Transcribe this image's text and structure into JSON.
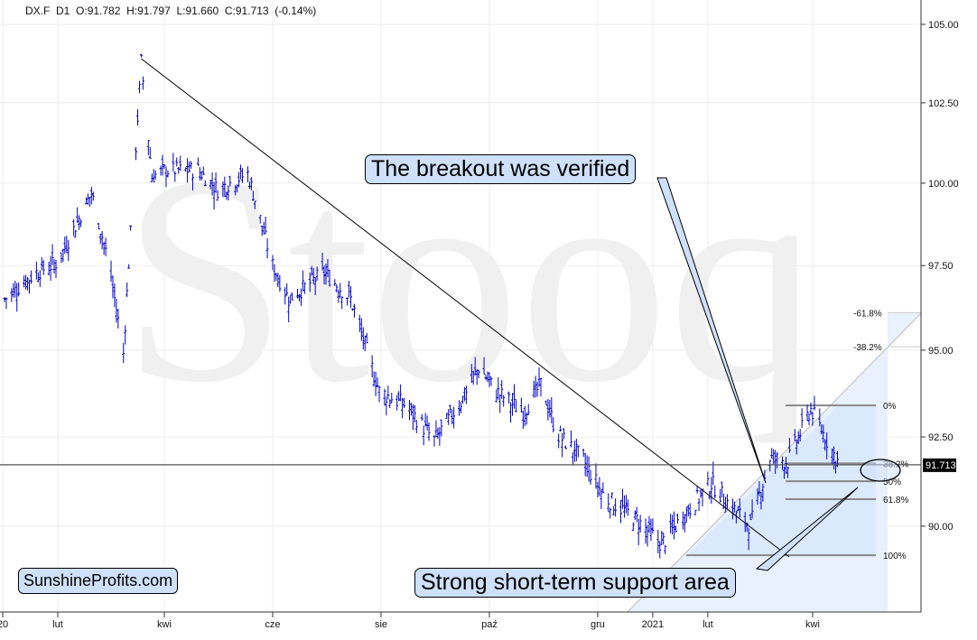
{
  "header": {
    "symbol": "DX.F",
    "interval": "D1",
    "open": "O:91.782",
    "high": "H:91.797",
    "low": "L:91.660",
    "close": "C:91.713",
    "change": "(-0.14%)"
  },
  "watermark": "Stooq",
  "brand": "SunshineProfits.com",
  "callouts": {
    "breakout": "The breakout was verified",
    "support": "Strong short-term support area"
  },
  "last_price_label": "91.713",
  "fib_labels": [
    "-61.8%",
    "-38.2%",
    "0%",
    "38.2%",
    "50%",
    "61.8%",
    "100%"
  ],
  "colors": {
    "bars": "#0000cc",
    "callout_fill": "#cfe0fb",
    "channel": "#e3eefc",
    "last_label_bg": "#000000"
  },
  "chart_data": {
    "type": "ohlc",
    "title": "DX.F D1",
    "scale": "log",
    "ylim": [
      88.5,
      105.5
    ],
    "y_ticks": [
      "105.00",
      "102.50",
      "100.00",
      "97.50",
      "95.00",
      "92.50",
      "90.00"
    ],
    "y_tick_values": [
      105,
      102.5,
      100,
      97.5,
      95,
      92.5,
      90
    ],
    "x_ticks": [
      {
        "label": "20",
        "date": "2020-01-01"
      },
      {
        "label": "lut",
        "date": "2020-02-01"
      },
      {
        "label": "kwi",
        "date": "2020-04-01"
      },
      {
        "label": "cze",
        "date": "2020-06-01"
      },
      {
        "label": "sie",
        "date": "2020-08-01"
      },
      {
        "label": "paź",
        "date": "2020-10-01"
      },
      {
        "label": "gru",
        "date": "2020-12-01"
      },
      {
        "label": "2021",
        "date": "2021-01-01"
      },
      {
        "label": "lut",
        "date": "2021-02-01"
      },
      {
        "label": "kwi",
        "date": "2021-04-01"
      }
    ],
    "series_waypoints": [
      [
        "2020-01-02",
        96.5
      ],
      [
        "2020-01-20",
        97.3
      ],
      [
        "2020-02-01",
        97.6
      ],
      [
        "2020-02-20",
        99.7
      ],
      [
        "2020-03-01",
        97.5
      ],
      [
        "2020-03-09",
        94.9
      ],
      [
        "2020-03-19",
        103.8
      ],
      [
        "2020-03-25",
        100.2
      ],
      [
        "2020-04-01",
        100.4
      ],
      [
        "2020-04-20",
        100.4
      ],
      [
        "2020-05-01",
        99.8
      ],
      [
        "2020-05-18",
        100.3
      ],
      [
        "2020-06-01",
        97.5
      ],
      [
        "2020-06-10",
        96.5
      ],
      [
        "2020-06-30",
        97.3
      ],
      [
        "2020-07-15",
        96.5
      ],
      [
        "2020-07-31",
        93.8
      ],
      [
        "2020-08-15",
        93.4
      ],
      [
        "2020-08-31",
        92.4
      ],
      [
        "2020-09-15",
        93.5
      ],
      [
        "2020-09-25",
        94.5
      ],
      [
        "2020-10-05",
        93.8
      ],
      [
        "2020-10-20",
        93.2
      ],
      [
        "2020-10-30",
        94.0
      ],
      [
        "2020-11-08",
        92.6
      ],
      [
        "2020-11-22",
        91.9
      ],
      [
        "2020-12-05",
        90.8
      ],
      [
        "2020-12-20",
        90.3
      ],
      [
        "2021-01-06",
        89.5
      ],
      [
        "2021-01-20",
        90.4
      ],
      [
        "2021-02-03",
        91.2
      ],
      [
        "2021-02-15",
        90.5
      ],
      [
        "2021-02-25",
        90.0
      ],
      [
        "2021-03-08",
        91.9
      ],
      [
        "2021-03-18",
        91.8
      ],
      [
        "2021-03-31",
        93.3
      ],
      [
        "2021-04-10",
        92.3
      ],
      [
        "2021-04-16",
        91.713
      ]
    ],
    "annotations": {
      "trendline": [
        [
          "2020-03-19",
          103.9
        ],
        [
          "2021-03-01",
          89.7
        ]
      ],
      "horizontal_line": 91.713,
      "fib_levels": [
        {
          "label": "-61.8%",
          "value": 96.1
        },
        {
          "label": "-38.2%",
          "value": 95.1
        },
        {
          "label": "0%",
          "value": 93.4
        },
        {
          "label": "38.2%",
          "value": 91.75
        },
        {
          "label": "50%",
          "value": 91.25
        },
        {
          "label": "61.8%",
          "value": 90.75
        },
        {
          "label": "100%",
          "value": 89.2
        }
      ]
    }
  }
}
